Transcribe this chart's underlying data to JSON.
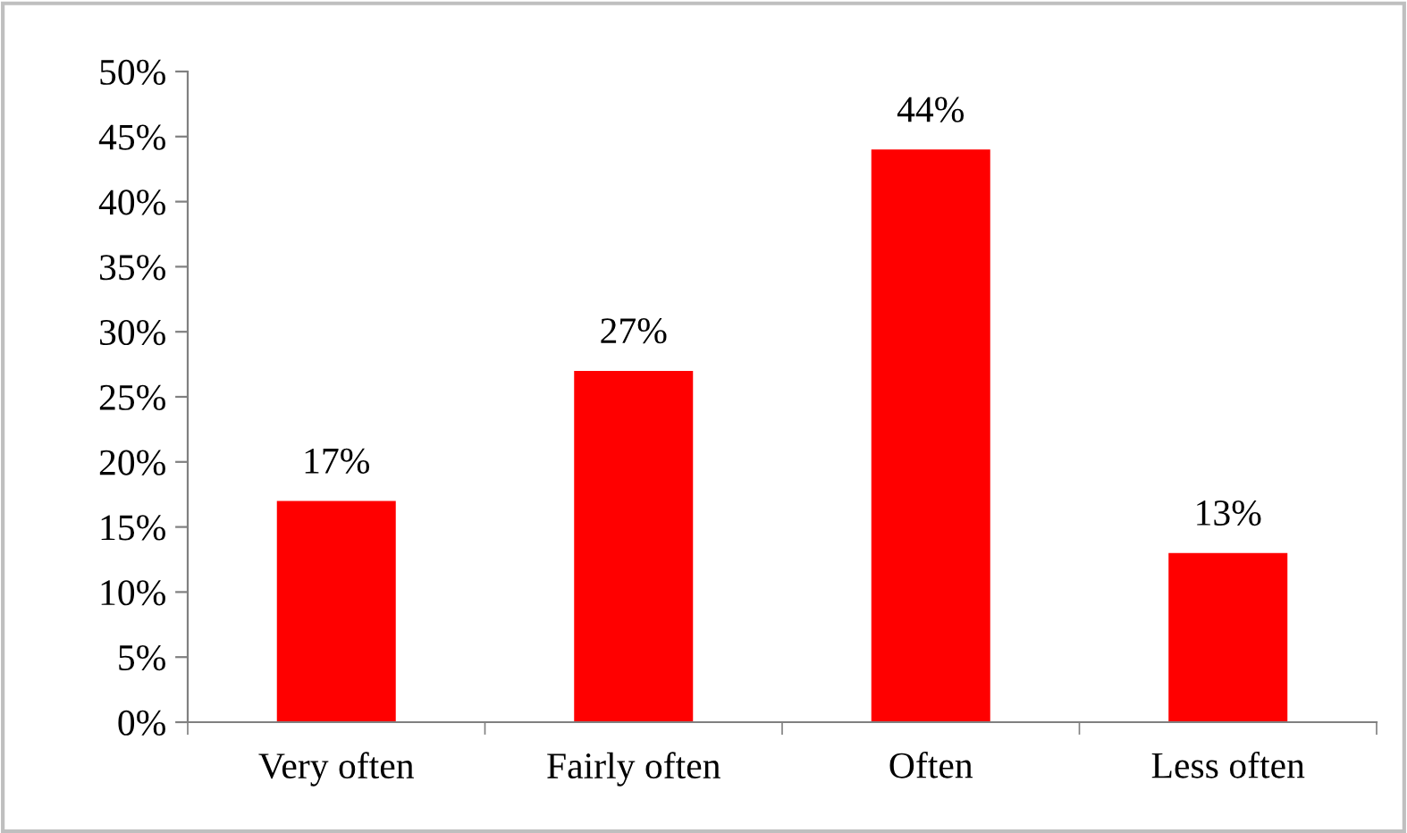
{
  "chart_data": {
    "type": "bar",
    "categories": [
      "Very often",
      "Fairly often",
      "Often",
      "Less often"
    ],
    "values": [
      17,
      27,
      44,
      13
    ],
    "color": "#ff0000",
    "data_labels": true,
    "value_labels": [
      "17%",
      "27%",
      "44%",
      "13%"
    ],
    "ylim": [
      0,
      50
    ],
    "yticks": [
      {
        "value": 0,
        "label": "0%"
      },
      {
        "value": 5,
        "label": "5%"
      },
      {
        "value": 10,
        "label": "10%"
      },
      {
        "value": 15,
        "label": "15%"
      },
      {
        "value": 20,
        "label": "20%"
      },
      {
        "value": 25,
        "label": "25%"
      },
      {
        "value": 30,
        "label": "30%"
      },
      {
        "value": 35,
        "label": "35%"
      },
      {
        "value": 40,
        "label": "40%"
      },
      {
        "value": 45,
        "label": "45%"
      },
      {
        "value": 50,
        "label": "50%"
      }
    ],
    "grid": false,
    "legend": false
  }
}
